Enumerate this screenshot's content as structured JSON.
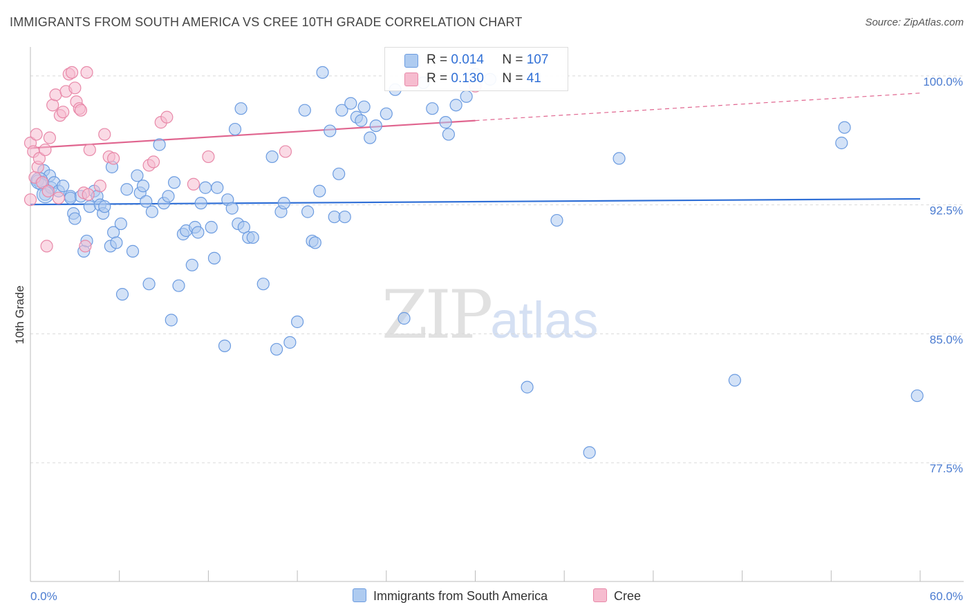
{
  "header": {
    "title": "IMMIGRANTS FROM SOUTH AMERICA VS CREE 10TH GRADE CORRELATION CHART",
    "source": "Source: ZipAtlas.com"
  },
  "watermark": {
    "zip": "ZIP",
    "atlas": "atlas"
  },
  "legend_top": {
    "row1": {
      "r_label": "R = ",
      "r_value": "0.014",
      "n_label": "N = ",
      "n_value": "107"
    },
    "row2": {
      "r_label": "R = ",
      "r_value": "0.130",
      "n_label": "N = ",
      "n_value": "41"
    }
  },
  "legend_bottom": {
    "series1": "Immigrants from South America",
    "series2": "Cree"
  },
  "colors": {
    "blue_fill": "#aecbf0",
    "blue_stroke": "#6b9be0",
    "blue_line": "#2f6fd6",
    "pink_fill": "#f6bccf",
    "pink_stroke": "#e888a8",
    "pink_line": "#e0658f",
    "tick_label": "#4a7bd0"
  },
  "chart_data": {
    "type": "scatter",
    "title": "IMMIGRANTS FROM SOUTH AMERICA VS CREE 10TH GRADE CORRELATION CHART",
    "xlabel": "",
    "ylabel": "10th Grade",
    "xlim": [
      0,
      60
    ],
    "ylim": [
      70.6,
      101.2
    ],
    "x_tick_labels": [
      "0.0%",
      "60.0%"
    ],
    "y_ticks": [
      77.5,
      85.0,
      92.5,
      100.0
    ],
    "y_tick_labels": [
      "77.5%",
      "85.0%",
      "92.5%",
      "100.0%"
    ],
    "grid": "horizontal dashed",
    "legend": "top-center and bottom",
    "series": [
      {
        "name": "Immigrants from South America",
        "color": "#6b9be0",
        "trend": {
          "x": [
            0,
            60
          ],
          "y": [
            92.52,
            92.85
          ]
        },
        "points": [
          [
            0.5,
            93.9
          ],
          [
            0.7,
            93.7
          ],
          [
            0.9,
            94.5
          ],
          [
            1.0,
            93.1
          ],
          [
            1.3,
            94.2
          ],
          [
            1.4,
            93.5
          ],
          [
            1.6,
            93.8
          ],
          [
            1.9,
            93.3
          ],
          [
            2.2,
            93.6
          ],
          [
            2.7,
            93.0
          ],
          [
            2.7,
            92.9
          ],
          [
            2.9,
            92.0
          ],
          [
            3.0,
            91.7
          ],
          [
            3.4,
            93.0
          ],
          [
            3.6,
            89.8
          ],
          [
            3.8,
            90.4
          ],
          [
            4.0,
            92.4
          ],
          [
            4.3,
            93.3
          ],
          [
            4.5,
            93.0
          ],
          [
            4.7,
            92.5
          ],
          [
            4.9,
            92.0
          ],
          [
            5.0,
            92.4
          ],
          [
            5.4,
            90.1
          ],
          [
            5.5,
            94.7
          ],
          [
            5.6,
            90.9
          ],
          [
            5.8,
            90.3
          ],
          [
            6.1,
            91.4
          ],
          [
            6.2,
            87.3
          ],
          [
            6.5,
            93.4
          ],
          [
            6.9,
            89.8
          ],
          [
            7.2,
            94.2
          ],
          [
            7.4,
            93.2
          ],
          [
            7.6,
            93.6
          ],
          [
            7.8,
            92.7
          ],
          [
            8.0,
            87.9
          ],
          [
            8.2,
            92.1
          ],
          [
            8.7,
            96.0
          ],
          [
            9.0,
            92.6
          ],
          [
            9.3,
            93.0
          ],
          [
            9.5,
            85.8
          ],
          [
            9.7,
            93.8
          ],
          [
            10.0,
            87.8
          ],
          [
            10.3,
            90.8
          ],
          [
            10.5,
            91.0
          ],
          [
            10.9,
            89.0
          ],
          [
            11.1,
            91.2
          ],
          [
            11.3,
            90.9
          ],
          [
            11.5,
            92.6
          ],
          [
            11.8,
            93.5
          ],
          [
            12.2,
            91.2
          ],
          [
            12.4,
            89.4
          ],
          [
            12.6,
            93.5
          ],
          [
            13.1,
            84.3
          ],
          [
            13.3,
            92.8
          ],
          [
            13.6,
            92.3
          ],
          [
            13.8,
            96.9
          ],
          [
            14.0,
            91.4
          ],
          [
            14.2,
            98.1
          ],
          [
            14.4,
            91.2
          ],
          [
            14.7,
            90.6
          ],
          [
            15.0,
            90.6
          ],
          [
            15.7,
            87.9
          ],
          [
            16.3,
            95.3
          ],
          [
            16.6,
            84.1
          ],
          [
            16.9,
            92.1
          ],
          [
            17.1,
            92.6
          ],
          [
            17.5,
            84.5
          ],
          [
            18.0,
            85.7
          ],
          [
            18.5,
            98.0
          ],
          [
            18.7,
            92.1
          ],
          [
            19.0,
            90.4
          ],
          [
            19.2,
            90.3
          ],
          [
            19.5,
            93.3
          ],
          [
            19.7,
            100.2
          ],
          [
            20.2,
            96.8
          ],
          [
            20.5,
            91.8
          ],
          [
            20.8,
            94.3
          ],
          [
            21.0,
            98.0
          ],
          [
            21.2,
            91.8
          ],
          [
            21.6,
            98.4
          ],
          [
            22.0,
            97.6
          ],
          [
            22.3,
            97.4
          ],
          [
            22.5,
            98.2
          ],
          [
            22.9,
            96.4
          ],
          [
            23.3,
            97.1
          ],
          [
            24.0,
            97.8
          ],
          [
            24.6,
            99.2
          ],
          [
            25.2,
            85.9
          ],
          [
            26.5,
            99.6
          ],
          [
            27.1,
            98.1
          ],
          [
            28.0,
            97.3
          ],
          [
            28.2,
            96.6
          ],
          [
            28.7,
            98.3
          ],
          [
            29.4,
            98.8
          ],
          [
            30.0,
            100.1
          ],
          [
            31.0,
            99.8
          ],
          [
            33.5,
            81.9
          ],
          [
            35.5,
            91.6
          ],
          [
            37.7,
            78.1
          ],
          [
            39.7,
            95.2
          ],
          [
            47.5,
            82.3
          ],
          [
            54.7,
            96.1
          ],
          [
            54.9,
            97.0
          ],
          [
            59.8,
            81.4
          ]
        ]
      },
      {
        "name": "Cree",
        "color": "#e888a8",
        "trend": {
          "x": [
            0,
            30
          ],
          "y": [
            95.8,
            97.4
          ]
        },
        "points": [
          [
            0.0,
            96.1
          ],
          [
            0.0,
            92.8
          ],
          [
            0.2,
            95.6
          ],
          [
            0.3,
            94.1
          ],
          [
            0.4,
            96.6
          ],
          [
            0.5,
            94.7
          ],
          [
            0.6,
            95.2
          ],
          [
            0.8,
            93.8
          ],
          [
            1.0,
            95.7
          ],
          [
            1.1,
            90.1
          ],
          [
            1.3,
            96.4
          ],
          [
            1.5,
            98.3
          ],
          [
            1.7,
            98.9
          ],
          [
            1.9,
            92.9
          ],
          [
            2.0,
            97.7
          ],
          [
            2.2,
            97.9
          ],
          [
            2.4,
            99.1
          ],
          [
            2.6,
            100.1
          ],
          [
            2.8,
            100.2
          ],
          [
            3.0,
            99.3
          ],
          [
            3.1,
            98.5
          ],
          [
            3.3,
            98.1
          ],
          [
            3.4,
            98.0
          ],
          [
            3.6,
            93.2
          ],
          [
            3.8,
            100.2
          ],
          [
            3.9,
            93.1
          ],
          [
            4.0,
            95.7
          ],
          [
            4.7,
            93.6
          ],
          [
            5.0,
            96.6
          ],
          [
            5.3,
            95.3
          ],
          [
            5.6,
            95.2
          ],
          [
            8.0,
            94.8
          ],
          [
            8.3,
            95.0
          ],
          [
            8.8,
            97.3
          ],
          [
            9.2,
            97.6
          ],
          [
            11.0,
            93.7
          ],
          [
            12.0,
            95.3
          ],
          [
            17.2,
            95.6
          ],
          [
            30.0,
            99.4
          ],
          [
            1.2,
            93.3
          ],
          [
            3.7,
            90.1
          ]
        ]
      }
    ]
  }
}
